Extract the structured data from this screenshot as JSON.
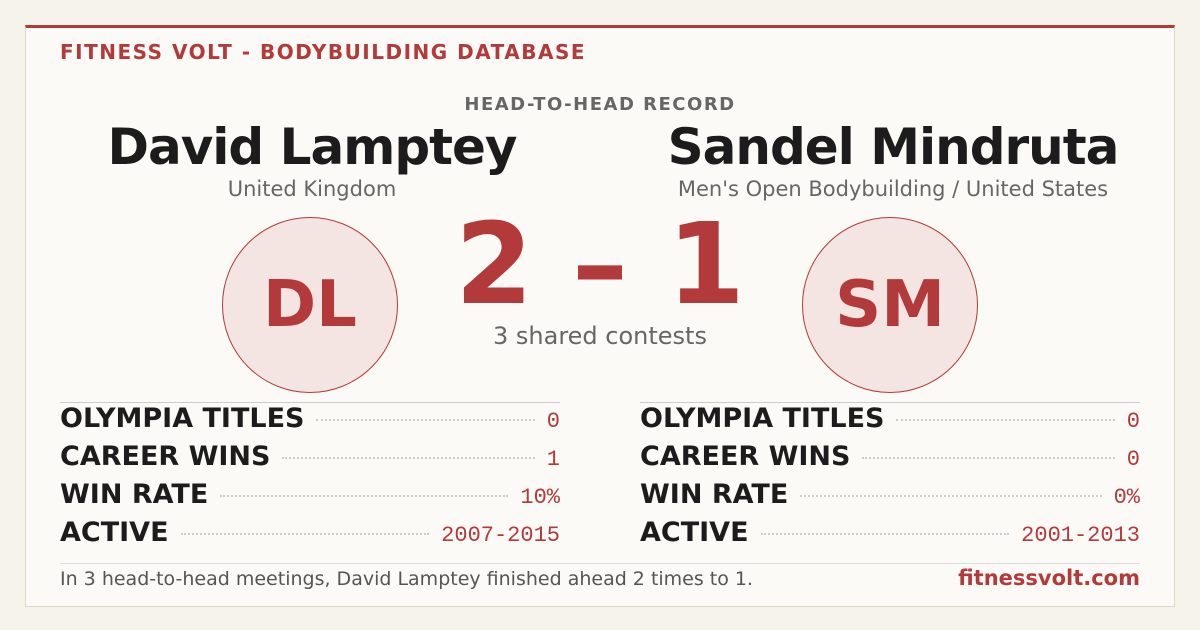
{
  "header": {
    "brand": "FITNESS VOLT - BODYBUILDING DATABASE",
    "section": "HEAD-TO-HEAD RECORD"
  },
  "left": {
    "name": "David Lamptey",
    "subtitle": "United Kingdom",
    "initials": "DL",
    "stats": [
      {
        "label": "OLYMPIA TITLES",
        "value": "0"
      },
      {
        "label": "CAREER WINS",
        "value": "1"
      },
      {
        "label": "WIN RATE",
        "value": "10%"
      },
      {
        "label": "ACTIVE",
        "value": "2007-2015"
      }
    ]
  },
  "right": {
    "name": "Sandel Mindruta",
    "subtitle": "Men's Open Bodybuilding / United States",
    "initials": "SM",
    "stats": [
      {
        "label": "OLYMPIA TITLES",
        "value": "0"
      },
      {
        "label": "CAREER WINS",
        "value": "0"
      },
      {
        "label": "WIN RATE",
        "value": "0%"
      },
      {
        "label": "ACTIVE",
        "value": "2001-2013"
      }
    ]
  },
  "score": "2 – 1",
  "shared": "3 shared contests",
  "footer": {
    "summary": "In 3 head-to-head meetings, David Lamptey finished ahead 2 times to 1.",
    "site": "fitnessvolt.com"
  }
}
